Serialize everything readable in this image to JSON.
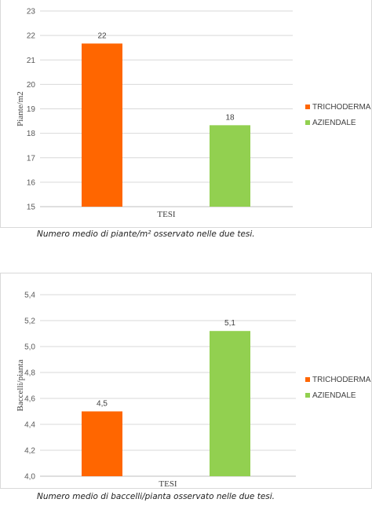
{
  "chart_data": [
    {
      "type": "bar",
      "categories": [
        "TESI"
      ],
      "series": [
        {
          "name": "TRICHODERMA",
          "values": [
            21.67
          ],
          "label": "22",
          "color": "#ff6600"
        },
        {
          "name": "AZIENDALE",
          "values": [
            18.33
          ],
          "label": "18",
          "color": "#92d050"
        }
      ],
      "title": "",
      "xlabel": "TESI",
      "ylabel": "Piante/m2",
      "ylim": [
        15,
        23
      ],
      "yticks": [
        "15",
        "16",
        "17",
        "18",
        "19",
        "20",
        "21",
        "22",
        "23"
      ],
      "grid": true,
      "legend_position": "right"
    },
    {
      "type": "bar",
      "categories": [
        "TESI"
      ],
      "series": [
        {
          "name": "TRICHODERMA",
          "values": [
            4.5
          ],
          "label": "4,5",
          "color": "#ff6600"
        },
        {
          "name": "AZIENDALE",
          "values": [
            5.12
          ],
          "label": "5,1",
          "color": "#92d050"
        }
      ],
      "title": "",
      "xlabel": "TESI",
      "ylabel": "Baccelli/pianta",
      "ylim": [
        4.0,
        5.4
      ],
      "yticks": [
        "4,0",
        "4,2",
        "4,4",
        "4,6",
        "4,8",
        "5,0",
        "5,2",
        "5,4"
      ],
      "grid": true,
      "legend_position": "right"
    }
  ],
  "captions": {
    "chart1": "Numero medio di piante/m² osservato nelle due tesi.",
    "chart2": "Numero medio di baccelli/pianta osservato nelle due tesi."
  }
}
